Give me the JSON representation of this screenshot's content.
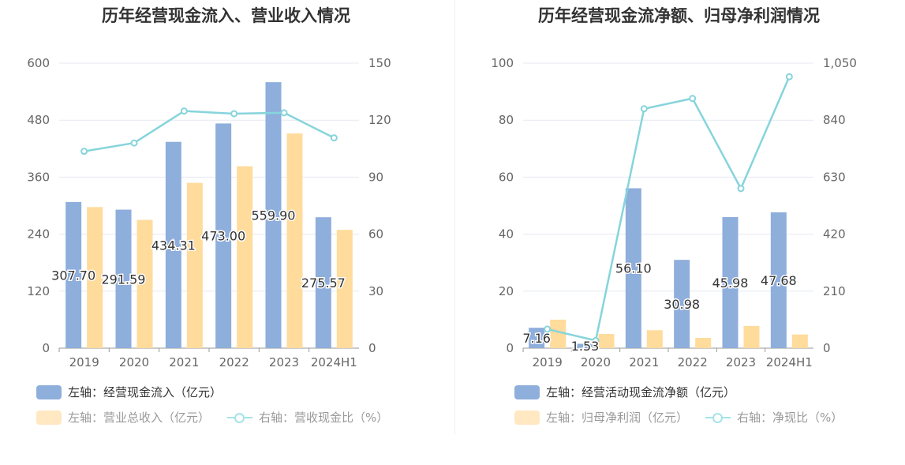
{
  "chart_data": [
    {
      "type": "bar",
      "title": "历年经营现金流入、营业收入情况",
      "categories": [
        "2019",
        "2020",
        "2021",
        "2022",
        "2023",
        "2024H1"
      ],
      "left_axis": {
        "ylim": [
          0,
          600
        ],
        "ticks": [
          "0",
          "120",
          "240",
          "360",
          "480",
          "600"
        ]
      },
      "right_axis": {
        "ylim": [
          0,
          150
        ],
        "ticks": [
          "0",
          "30",
          "60",
          "90",
          "120",
          "150"
        ]
      },
      "series": [
        {
          "name": "左轴：经营现金流入（亿元）",
          "axis": "left",
          "kind": "bar",
          "color": "#8eaedc",
          "values": [
            307.7,
            291.59,
            434.31,
            473.0,
            559.9,
            275.57
          ],
          "labels": [
            "307.70",
            "291.59",
            "434.31",
            "473.00",
            "559.90",
            "275.57"
          ]
        },
        {
          "name": "左轴：营业总收入（亿元）",
          "axis": "left",
          "kind": "bar",
          "color": "#ffdb9c",
          "values": [
            297,
            270,
            348,
            383,
            452,
            249
          ]
        },
        {
          "name": "右轴：营收现金比（%）",
          "axis": "right",
          "kind": "line",
          "color": "#86d4dc",
          "values": [
            103.6,
            108.0,
            124.8,
            123.4,
            123.9,
            110.7
          ]
        }
      ],
      "grid": true,
      "legend_position": "bottom"
    },
    {
      "type": "bar",
      "title": "历年经营现金流净额、归母净利润情况",
      "categories": [
        "2019",
        "2020",
        "2021",
        "2022",
        "2023",
        "2024H1"
      ],
      "left_axis": {
        "ylim": [
          0,
          100
        ],
        "ticks": [
          "0",
          "20",
          "40",
          "60",
          "80",
          "100"
        ]
      },
      "right_axis": {
        "ylim": [
          0,
          1050
        ],
        "ticks": [
          "0",
          "210",
          "420",
          "630",
          "840",
          "1,050"
        ]
      },
      "series": [
        {
          "name": "左轴：经营活动现金流净额（亿元）",
          "axis": "left",
          "kind": "bar",
          "color": "#8eaedc",
          "values": [
            7.16,
            1.53,
            56.1,
            30.98,
            45.98,
            47.68
          ],
          "labels": [
            "7.16",
            "1.53",
            "56.10",
            "30.98",
            "45.98",
            "47.68"
          ]
        },
        {
          "name": "左轴：归母净利润（亿元）",
          "axis": "left",
          "kind": "bar",
          "color": "#ffdb9c",
          "values": [
            10.0,
            5.0,
            6.3,
            3.6,
            7.8,
            4.8
          ]
        },
        {
          "name": "右轴：净现比（%）",
          "axis": "right",
          "kind": "line",
          "color": "#86d4dc",
          "values": [
            70,
            28,
            882,
            920,
            588,
            1000
          ]
        }
      ],
      "grid": true,
      "legend_position": "bottom"
    }
  ]
}
